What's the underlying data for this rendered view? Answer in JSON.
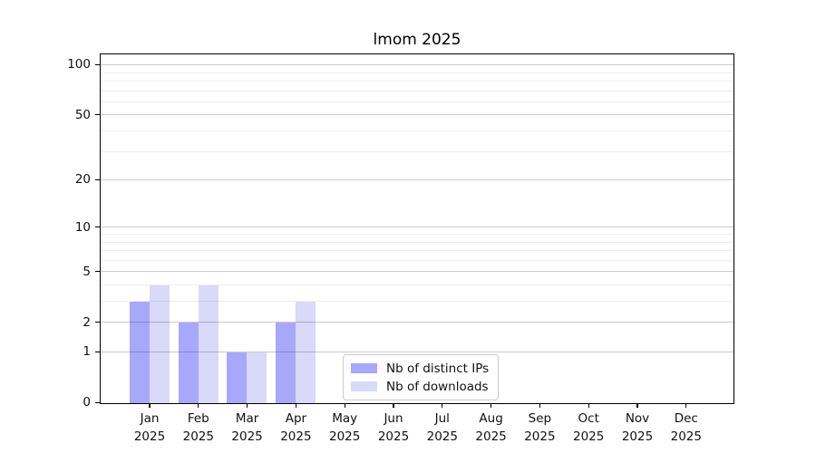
{
  "chart_data": {
    "type": "bar",
    "title": "lmom 2025",
    "categories": [
      "Jan\n2025",
      "Feb\n2025",
      "Mar\n2025",
      "Apr\n2025",
      "May\n2025",
      "Jun\n2025",
      "Jul\n2025",
      "Aug\n2025",
      "Sep\n2025",
      "Oct\n2025",
      "Nov\n2025",
      "Dec\n2025"
    ],
    "series": [
      {
        "name": "Nb of distinct IPs",
        "color": "#a8a8fa",
        "values": [
          3,
          2,
          1,
          2,
          0,
          0,
          0,
          0,
          0,
          0,
          0,
          0
        ]
      },
      {
        "name": "Nb of downloads",
        "color": "#d9d9f8",
        "values": [
          4,
          4,
          1,
          3,
          0,
          0,
          0,
          0,
          0,
          0,
          0,
          0
        ]
      }
    ],
    "xlabel": "",
    "ylabel": "",
    "y_scale": "log1p",
    "y_ticks": [
      0,
      1,
      2,
      5,
      10,
      20,
      50,
      100
    ],
    "y_minor_gridlines": [
      3,
      4,
      6,
      7,
      8,
      9,
      30,
      40,
      60,
      70,
      80,
      90
    ],
    "ylim": [
      0,
      116
    ],
    "grid": true,
    "legend_position": "lower center",
    "grid_major_color": "#cccccc",
    "grid_minor_color": "#ededed",
    "axis_color": "#000000"
  }
}
